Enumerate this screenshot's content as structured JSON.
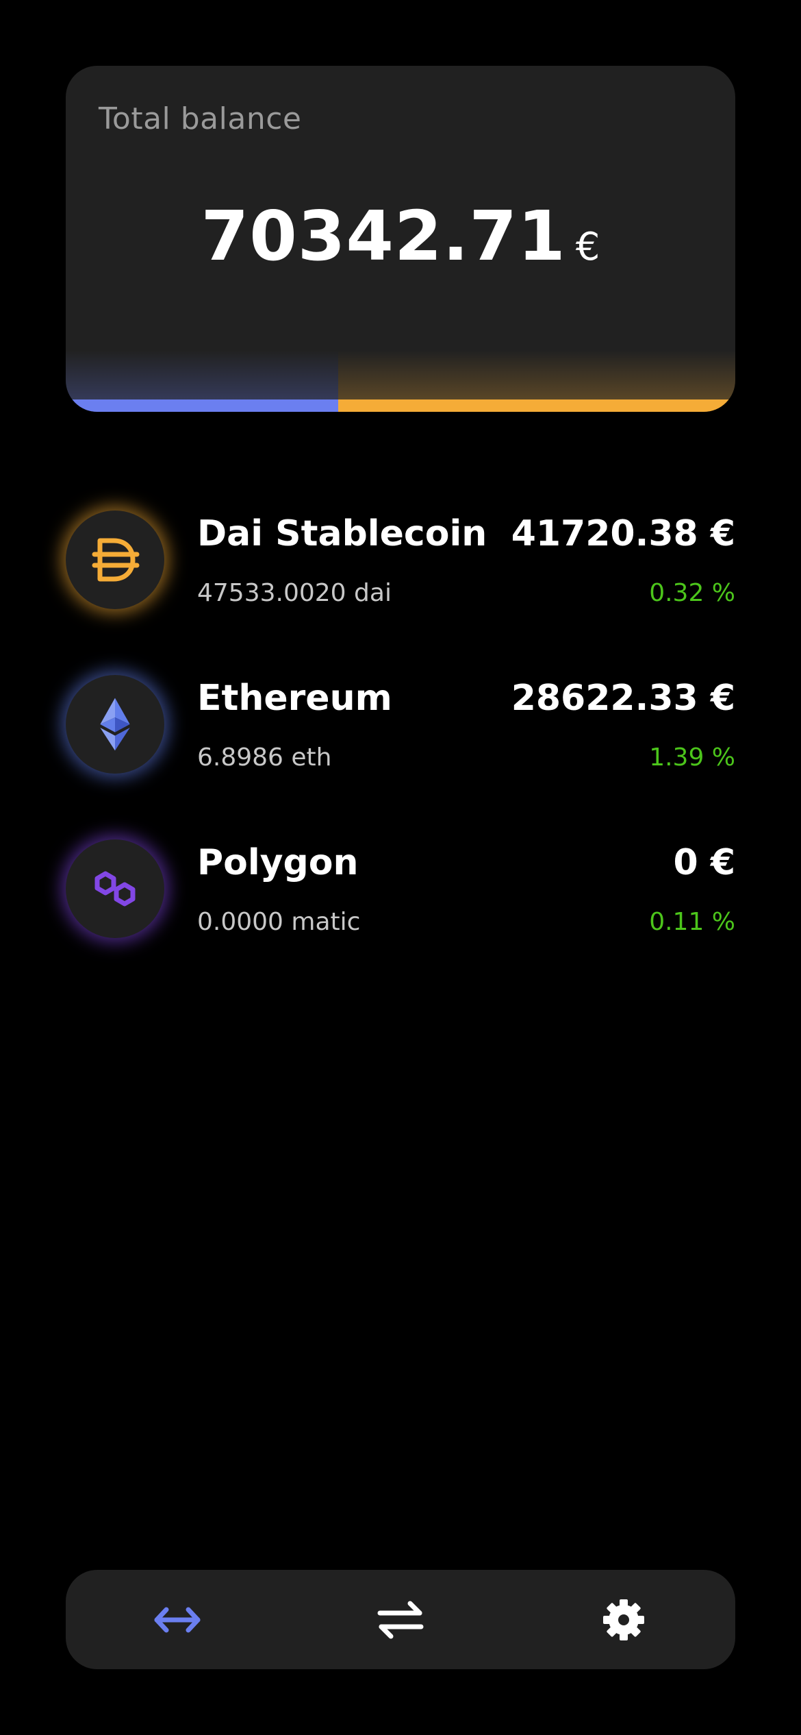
{
  "balance": {
    "label": "Total balance",
    "amount": "70342.71",
    "currency": "€",
    "allocation": [
      {
        "asset": "Ethereum",
        "fraction": 0.407,
        "color": "#6b7ff0"
      },
      {
        "asset": "Dai Stablecoin",
        "fraction": 0.593,
        "color": "#f5ac37"
      }
    ]
  },
  "assets": [
    {
      "name": "Dai Stablecoin",
      "quantity": "47533.0020 dai",
      "value": "41720.38 €",
      "change": "0.32 %",
      "icon": "dai-icon",
      "glow_color": "#f5ac37"
    },
    {
      "name": "Ethereum",
      "quantity": "6.8986 eth",
      "value": "28622.33 €",
      "change": "1.39 %",
      "icon": "ethereum-icon",
      "glow_color": "#627eea"
    },
    {
      "name": "Polygon",
      "quantity": "0.0000 matic",
      "value": "0 €",
      "change": "0.11 %",
      "icon": "polygon-icon",
      "glow_color": "#8247e5"
    }
  ],
  "colors": {
    "positive_change": "#4cc51b",
    "accent": "#6b7ff0"
  },
  "nav": [
    {
      "icon": "transfer-arrows-icon",
      "active": true,
      "color": "#6b7ff0"
    },
    {
      "icon": "swap-icon",
      "active": false,
      "color": "#ffffff"
    },
    {
      "icon": "gear-icon",
      "active": false,
      "color": "#ffffff"
    }
  ]
}
